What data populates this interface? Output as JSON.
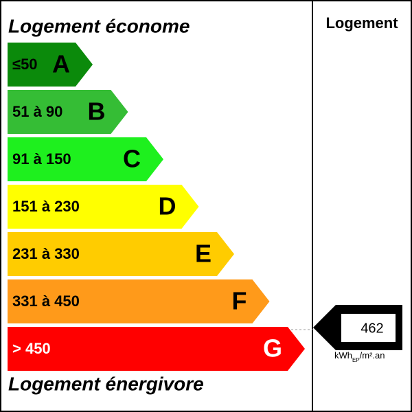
{
  "header": {
    "top_label": "Logement économe",
    "bottom_label": "Logement énergivore",
    "column_title": "Logement"
  },
  "classes": [
    {
      "range": "≤50",
      "letter": "A",
      "color": "#0b8a0b",
      "text_color": "#000000"
    },
    {
      "range": "51 à 90",
      "letter": "B",
      "color": "#35bd35",
      "text_color": "#000000"
    },
    {
      "range": "91 à 150",
      "letter": "C",
      "color": "#1ef01e",
      "text_color": "#000000"
    },
    {
      "range": "151 à 230",
      "letter": "D",
      "color": "#ffff00",
      "text_color": "#000000"
    },
    {
      "range": "231 à 330",
      "letter": "E",
      "color": "#ffcc00",
      "text_color": "#000000"
    },
    {
      "range": "331 à 450",
      "letter": "F",
      "color": "#ff9a1a",
      "text_color": "#000000"
    },
    {
      "range": "> 450",
      "letter": "G",
      "color": "#ff0000",
      "text_color": "#ffffff"
    }
  ],
  "result": {
    "value": "462",
    "unit": "kWh",
    "unit_sub": "EP",
    "unit_tail": "/m².an"
  }
}
